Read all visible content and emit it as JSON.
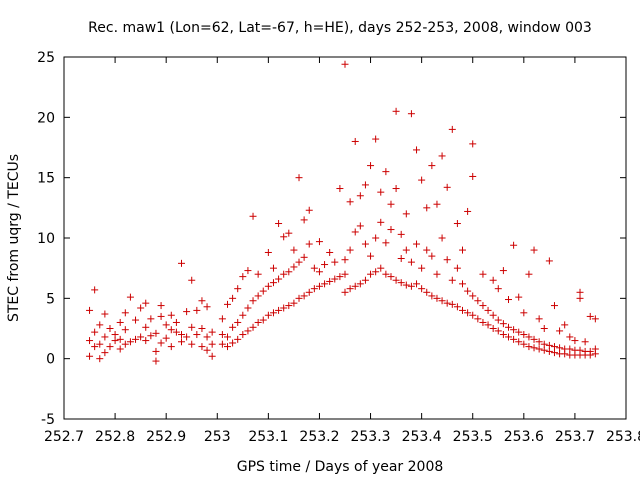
{
  "chart_data": {
    "type": "scatter",
    "title": "Rec. maw1 (Lon=62, Lat=-67, h=HE), days 252-253, 2008, window 003",
    "xlabel": "GPS time / Days of year 2008",
    "ylabel": "STEC from uqrg / TECUs",
    "xlim": [
      252.7,
      253.8
    ],
    "ylim": [
      -5,
      25
    ],
    "xticks": [
      252.7,
      252.8,
      252.9,
      253.0,
      253.1,
      253.2,
      253.3,
      253.4,
      253.5,
      253.6,
      253.7,
      253.8
    ],
    "xtick_labels": [
      "252.7",
      "252.8",
      "252.9",
      "253",
      "253.1",
      "253.2",
      "253.3",
      "253.4",
      "253.5",
      "253.6",
      "253.7",
      "253.8"
    ],
    "yticks": [
      -5,
      0,
      5,
      10,
      15,
      20,
      25
    ],
    "ytick_labels": [
      "-5",
      "0",
      "5",
      "10",
      "15",
      "20",
      "25"
    ],
    "grid": false,
    "marker": "+",
    "color": "#cc0000",
    "series": [
      {
        "points": [
          [
            252.75,
            0.2
          ],
          [
            252.75,
            1.5
          ],
          [
            252.75,
            4.0
          ],
          [
            252.76,
            1.0
          ],
          [
            252.76,
            2.2
          ],
          [
            252.76,
            5.7
          ],
          [
            252.77,
            0.0
          ],
          [
            252.77,
            1.2
          ],
          [
            252.77,
            2.8
          ],
          [
            252.78,
            0.5
          ],
          [
            252.78,
            1.8
          ],
          [
            252.78,
            3.7
          ],
          [
            252.79,
            1.0
          ],
          [
            252.79,
            2.5
          ],
          [
            252.8,
            1.5
          ],
          [
            252.8,
            2.0
          ],
          [
            252.81,
            0.8
          ],
          [
            252.81,
            1.6
          ],
          [
            252.81,
            3.0
          ],
          [
            252.82,
            1.2
          ],
          [
            252.82,
            2.4
          ],
          [
            252.82,
            3.8
          ],
          [
            252.83,
            1.4
          ],
          [
            252.83,
            5.1
          ],
          [
            252.84,
            1.6
          ],
          [
            252.84,
            3.2
          ],
          [
            252.85,
            1.8
          ],
          [
            252.85,
            4.2
          ],
          [
            252.86,
            1.5
          ],
          [
            252.86,
            2.6
          ],
          [
            252.86,
            4.6
          ],
          [
            252.87,
            1.9
          ],
          [
            252.87,
            3.3
          ],
          [
            252.88,
            -0.2
          ],
          [
            252.88,
            0.6
          ],
          [
            252.88,
            2.1
          ],
          [
            252.89,
            1.3
          ],
          [
            252.89,
            3.5
          ],
          [
            252.89,
            4.4
          ],
          [
            252.9,
            1.7
          ],
          [
            252.9,
            2.8
          ],
          [
            252.91,
            1.0
          ],
          [
            252.91,
            2.4
          ],
          [
            252.91,
            3.6
          ],
          [
            252.92,
            2.2
          ],
          [
            252.92,
            3.0
          ],
          [
            252.93,
            1.4
          ],
          [
            252.93,
            2.0
          ],
          [
            252.93,
            7.9
          ],
          [
            252.94,
            1.8
          ],
          [
            252.94,
            3.9
          ],
          [
            252.95,
            1.2
          ],
          [
            252.95,
            2.6
          ],
          [
            252.95,
            6.5
          ],
          [
            252.96,
            2.0
          ],
          [
            252.96,
            4.0
          ],
          [
            252.97,
            1.0
          ],
          [
            252.97,
            2.5
          ],
          [
            252.97,
            4.8
          ],
          [
            252.98,
            0.7
          ],
          [
            252.98,
            1.8
          ],
          [
            252.98,
            4.3
          ],
          [
            252.99,
            0.2
          ],
          [
            252.99,
            1.2
          ],
          [
            252.99,
            2.2
          ],
          [
            253.01,
            1.2
          ],
          [
            253.01,
            2.0
          ],
          [
            253.01,
            3.3
          ],
          [
            253.02,
            1.0
          ],
          [
            253.02,
            1.8
          ],
          [
            253.02,
            4.5
          ],
          [
            253.03,
            1.3
          ],
          [
            253.03,
            2.6
          ],
          [
            253.03,
            5.0
          ],
          [
            253.04,
            1.6
          ],
          [
            253.04,
            3.0
          ],
          [
            253.04,
            5.8
          ],
          [
            253.05,
            2.0
          ],
          [
            253.05,
            3.6
          ],
          [
            253.05,
            6.8
          ],
          [
            253.06,
            2.3
          ],
          [
            253.06,
            4.2
          ],
          [
            253.06,
            7.3
          ],
          [
            253.07,
            2.6
          ],
          [
            253.07,
            4.8
          ],
          [
            253.07,
            11.8
          ],
          [
            253.08,
            3.0
          ],
          [
            253.08,
            5.2
          ],
          [
            253.08,
            7.0
          ],
          [
            253.09,
            3.2
          ],
          [
            253.09,
            5.6
          ],
          [
            253.1,
            3.6
          ],
          [
            253.1,
            6.0
          ],
          [
            253.1,
            8.8
          ],
          [
            253.11,
            3.8
          ],
          [
            253.11,
            6.3
          ],
          [
            253.11,
            7.5
          ],
          [
            253.12,
            4.0
          ],
          [
            253.12,
            6.6
          ],
          [
            253.12,
            11.2
          ],
          [
            253.13,
            4.2
          ],
          [
            253.13,
            7.0
          ],
          [
            253.13,
            10.1
          ],
          [
            253.14,
            4.4
          ],
          [
            253.14,
            7.2
          ],
          [
            253.14,
            10.4
          ],
          [
            253.15,
            4.6
          ],
          [
            253.15,
            7.6
          ],
          [
            253.15,
            9.0
          ],
          [
            253.16,
            5.0
          ],
          [
            253.16,
            8.0
          ],
          [
            253.16,
            15.0
          ],
          [
            253.17,
            5.2
          ],
          [
            253.17,
            8.4
          ],
          [
            253.17,
            11.5
          ],
          [
            253.18,
            5.5
          ],
          [
            253.18,
            9.5
          ],
          [
            253.18,
            12.3
          ],
          [
            253.19,
            5.8
          ],
          [
            253.19,
            7.5
          ],
          [
            253.2,
            6.0
          ],
          [
            253.2,
            7.2
          ],
          [
            253.2,
            9.7
          ],
          [
            253.21,
            6.2
          ],
          [
            253.21,
            7.8
          ],
          [
            253.22,
            6.4
          ],
          [
            253.22,
            8.8
          ],
          [
            253.23,
            6.6
          ],
          [
            253.23,
            8.0
          ],
          [
            253.24,
            6.8
          ],
          [
            253.24,
            14.1
          ],
          [
            253.25,
            5.5
          ],
          [
            253.25,
            7.0
          ],
          [
            253.25,
            24.4
          ],
          [
            253.25,
            8.2
          ],
          [
            253.26,
            5.8
          ],
          [
            253.26,
            9.0
          ],
          [
            253.26,
            13.0
          ],
          [
            253.27,
            6.0
          ],
          [
            253.27,
            10.5
          ],
          [
            253.27,
            18.0
          ],
          [
            253.28,
            6.2
          ],
          [
            253.28,
            11.0
          ],
          [
            253.28,
            13.5
          ],
          [
            253.29,
            6.5
          ],
          [
            253.29,
            9.5
          ],
          [
            253.29,
            14.4
          ],
          [
            253.3,
            7.0
          ],
          [
            253.3,
            8.5
          ],
          [
            253.3,
            16.0
          ],
          [
            253.31,
            7.2
          ],
          [
            253.31,
            10.0
          ],
          [
            253.31,
            18.2
          ],
          [
            253.32,
            7.5
          ],
          [
            253.32,
            11.3
          ],
          [
            253.32,
            13.8
          ],
          [
            253.33,
            7.0
          ],
          [
            253.33,
            9.6
          ],
          [
            253.33,
            15.5
          ],
          [
            253.34,
            6.8
          ],
          [
            253.34,
            10.7
          ],
          [
            253.34,
            12.8
          ],
          [
            253.35,
            6.5
          ],
          [
            253.35,
            20.5
          ],
          [
            253.35,
            14.1
          ],
          [
            253.36,
            6.3
          ],
          [
            253.36,
            8.3
          ],
          [
            253.36,
            10.3
          ],
          [
            253.37,
            6.1
          ],
          [
            253.37,
            9.0
          ],
          [
            253.37,
            12.0
          ],
          [
            253.38,
            6.0
          ],
          [
            253.38,
            8.0
          ],
          [
            253.38,
            20.3
          ],
          [
            253.39,
            6.2
          ],
          [
            253.39,
            9.5
          ],
          [
            253.39,
            17.3
          ],
          [
            253.4,
            5.8
          ],
          [
            253.4,
            7.5
          ],
          [
            253.4,
            14.8
          ],
          [
            253.41,
            5.5
          ],
          [
            253.41,
            9.0
          ],
          [
            253.41,
            12.5
          ],
          [
            253.42,
            5.2
          ],
          [
            253.42,
            8.5
          ],
          [
            253.42,
            16.0
          ],
          [
            253.43,
            5.0
          ],
          [
            253.43,
            7.0
          ],
          [
            253.43,
            12.8
          ],
          [
            253.44,
            4.8
          ],
          [
            253.44,
            10.0
          ],
          [
            253.44,
            16.8
          ],
          [
            253.45,
            4.6
          ],
          [
            253.45,
            8.2
          ],
          [
            253.45,
            14.2
          ],
          [
            253.46,
            4.5
          ],
          [
            253.46,
            6.5
          ],
          [
            253.46,
            19.0
          ],
          [
            253.47,
            4.3
          ],
          [
            253.47,
            7.5
          ],
          [
            253.47,
            11.2
          ],
          [
            253.48,
            4.0
          ],
          [
            253.48,
            6.2
          ],
          [
            253.48,
            9.0
          ],
          [
            253.49,
            3.8
          ],
          [
            253.49,
            5.6
          ],
          [
            253.49,
            12.2
          ],
          [
            253.5,
            3.6
          ],
          [
            253.5,
            5.2
          ],
          [
            253.5,
            17.8
          ],
          [
            253.5,
            15.1
          ],
          [
            253.51,
            3.3
          ],
          [
            253.51,
            4.8
          ],
          [
            253.52,
            3.0
          ],
          [
            253.52,
            4.4
          ],
          [
            253.52,
            7.0
          ],
          [
            253.53,
            2.8
          ],
          [
            253.53,
            4.0
          ],
          [
            253.54,
            2.5
          ],
          [
            253.54,
            3.6
          ],
          [
            253.54,
            6.5
          ],
          [
            253.55,
            2.3
          ],
          [
            253.55,
            3.2
          ],
          [
            253.55,
            5.8
          ],
          [
            253.56,
            2.0
          ],
          [
            253.56,
            2.9
          ],
          [
            253.56,
            7.3
          ],
          [
            253.57,
            1.8
          ],
          [
            253.57,
            2.6
          ],
          [
            253.57,
            4.9
          ],
          [
            253.58,
            1.6
          ],
          [
            253.58,
            2.4
          ],
          [
            253.58,
            9.4
          ],
          [
            253.59,
            1.4
          ],
          [
            253.59,
            2.2
          ],
          [
            253.59,
            5.1
          ],
          [
            253.6,
            1.2
          ],
          [
            253.6,
            2.0
          ],
          [
            253.6,
            3.8
          ],
          [
            253.61,
            1.0
          ],
          [
            253.61,
            1.8
          ],
          [
            253.61,
            7.0
          ],
          [
            253.62,
            0.9
          ],
          [
            253.62,
            1.6
          ],
          [
            253.62,
            9.0
          ],
          [
            253.63,
            0.8
          ],
          [
            253.63,
            1.4
          ],
          [
            253.63,
            3.3
          ],
          [
            253.64,
            0.7
          ],
          [
            253.64,
            1.2
          ],
          [
            253.64,
            2.5
          ],
          [
            253.65,
            0.6
          ],
          [
            253.65,
            1.1
          ],
          [
            253.65,
            8.1
          ],
          [
            253.66,
            0.5
          ],
          [
            253.66,
            1.0
          ],
          [
            253.66,
            4.4
          ],
          [
            253.67,
            0.4
          ],
          [
            253.67,
            0.9
          ],
          [
            253.67,
            2.3
          ],
          [
            253.68,
            0.4
          ],
          [
            253.68,
            0.8
          ],
          [
            253.68,
            2.8
          ],
          [
            253.69,
            0.3
          ],
          [
            253.69,
            0.8
          ],
          [
            253.69,
            1.8
          ],
          [
            253.7,
            0.3
          ],
          [
            253.7,
            0.7
          ],
          [
            253.7,
            1.5
          ],
          [
            253.71,
            0.3
          ],
          [
            253.71,
            0.7
          ],
          [
            253.71,
            5.5
          ],
          [
            253.71,
            5.0
          ],
          [
            253.72,
            0.3
          ],
          [
            253.72,
            0.6
          ],
          [
            253.72,
            1.4
          ],
          [
            253.73,
            0.3
          ],
          [
            253.73,
            0.6
          ],
          [
            253.73,
            3.5
          ],
          [
            253.74,
            0.4
          ],
          [
            253.74,
            0.8
          ],
          [
            253.74,
            3.3
          ]
        ]
      }
    ]
  }
}
